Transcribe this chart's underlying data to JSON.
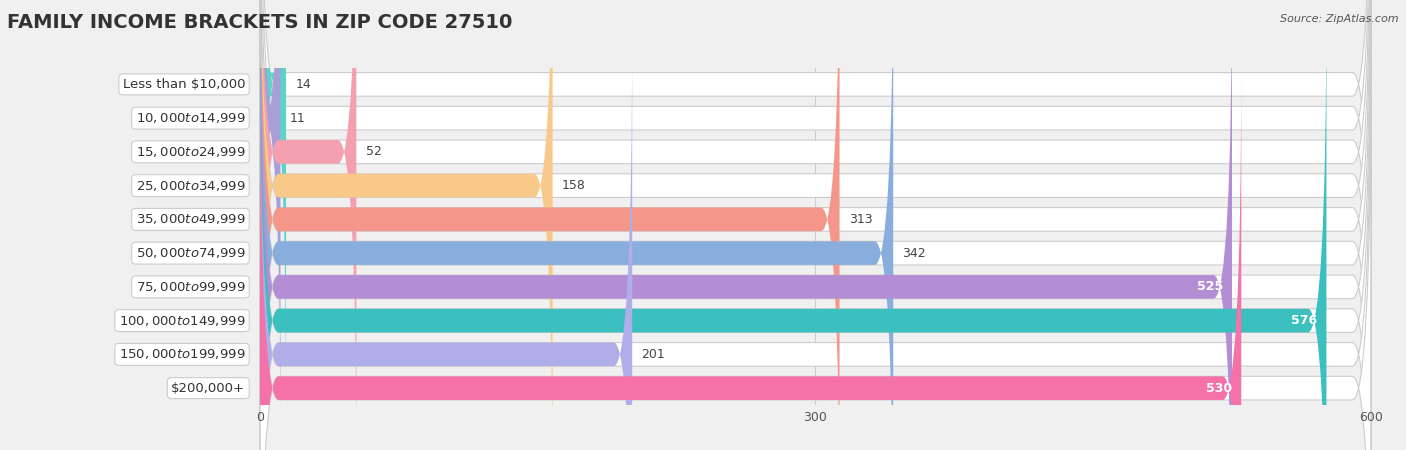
{
  "title": "FAMILY INCOME BRACKETS IN ZIP CODE 27510",
  "source": "Source: ZipAtlas.com",
  "categories": [
    "Less than $10,000",
    "$10,000 to $14,999",
    "$15,000 to $24,999",
    "$25,000 to $34,999",
    "$35,000 to $49,999",
    "$50,000 to $74,999",
    "$75,000 to $99,999",
    "$100,000 to $149,999",
    "$150,000 to $199,999",
    "$200,000+"
  ],
  "values": [
    14,
    11,
    52,
    158,
    313,
    342,
    525,
    576,
    201,
    530
  ],
  "bar_colors": [
    "#5dd3c8",
    "#a89fd8",
    "#f4a0b0",
    "#f9c98a",
    "#f4978a",
    "#89aedd",
    "#b48ed4",
    "#3bbfbf",
    "#b0aee8",
    "#f472a8"
  ],
  "row_bg_color": "#ffffff",
  "row_border_color": "#dddddd",
  "xlim": [
    0,
    600
  ],
  "xticks": [
    0,
    300,
    600
  ],
  "background_color": "#f0f0f0",
  "title_fontsize": 14,
  "label_fontsize": 9.5,
  "value_fontsize": 9,
  "source_fontsize": 8
}
